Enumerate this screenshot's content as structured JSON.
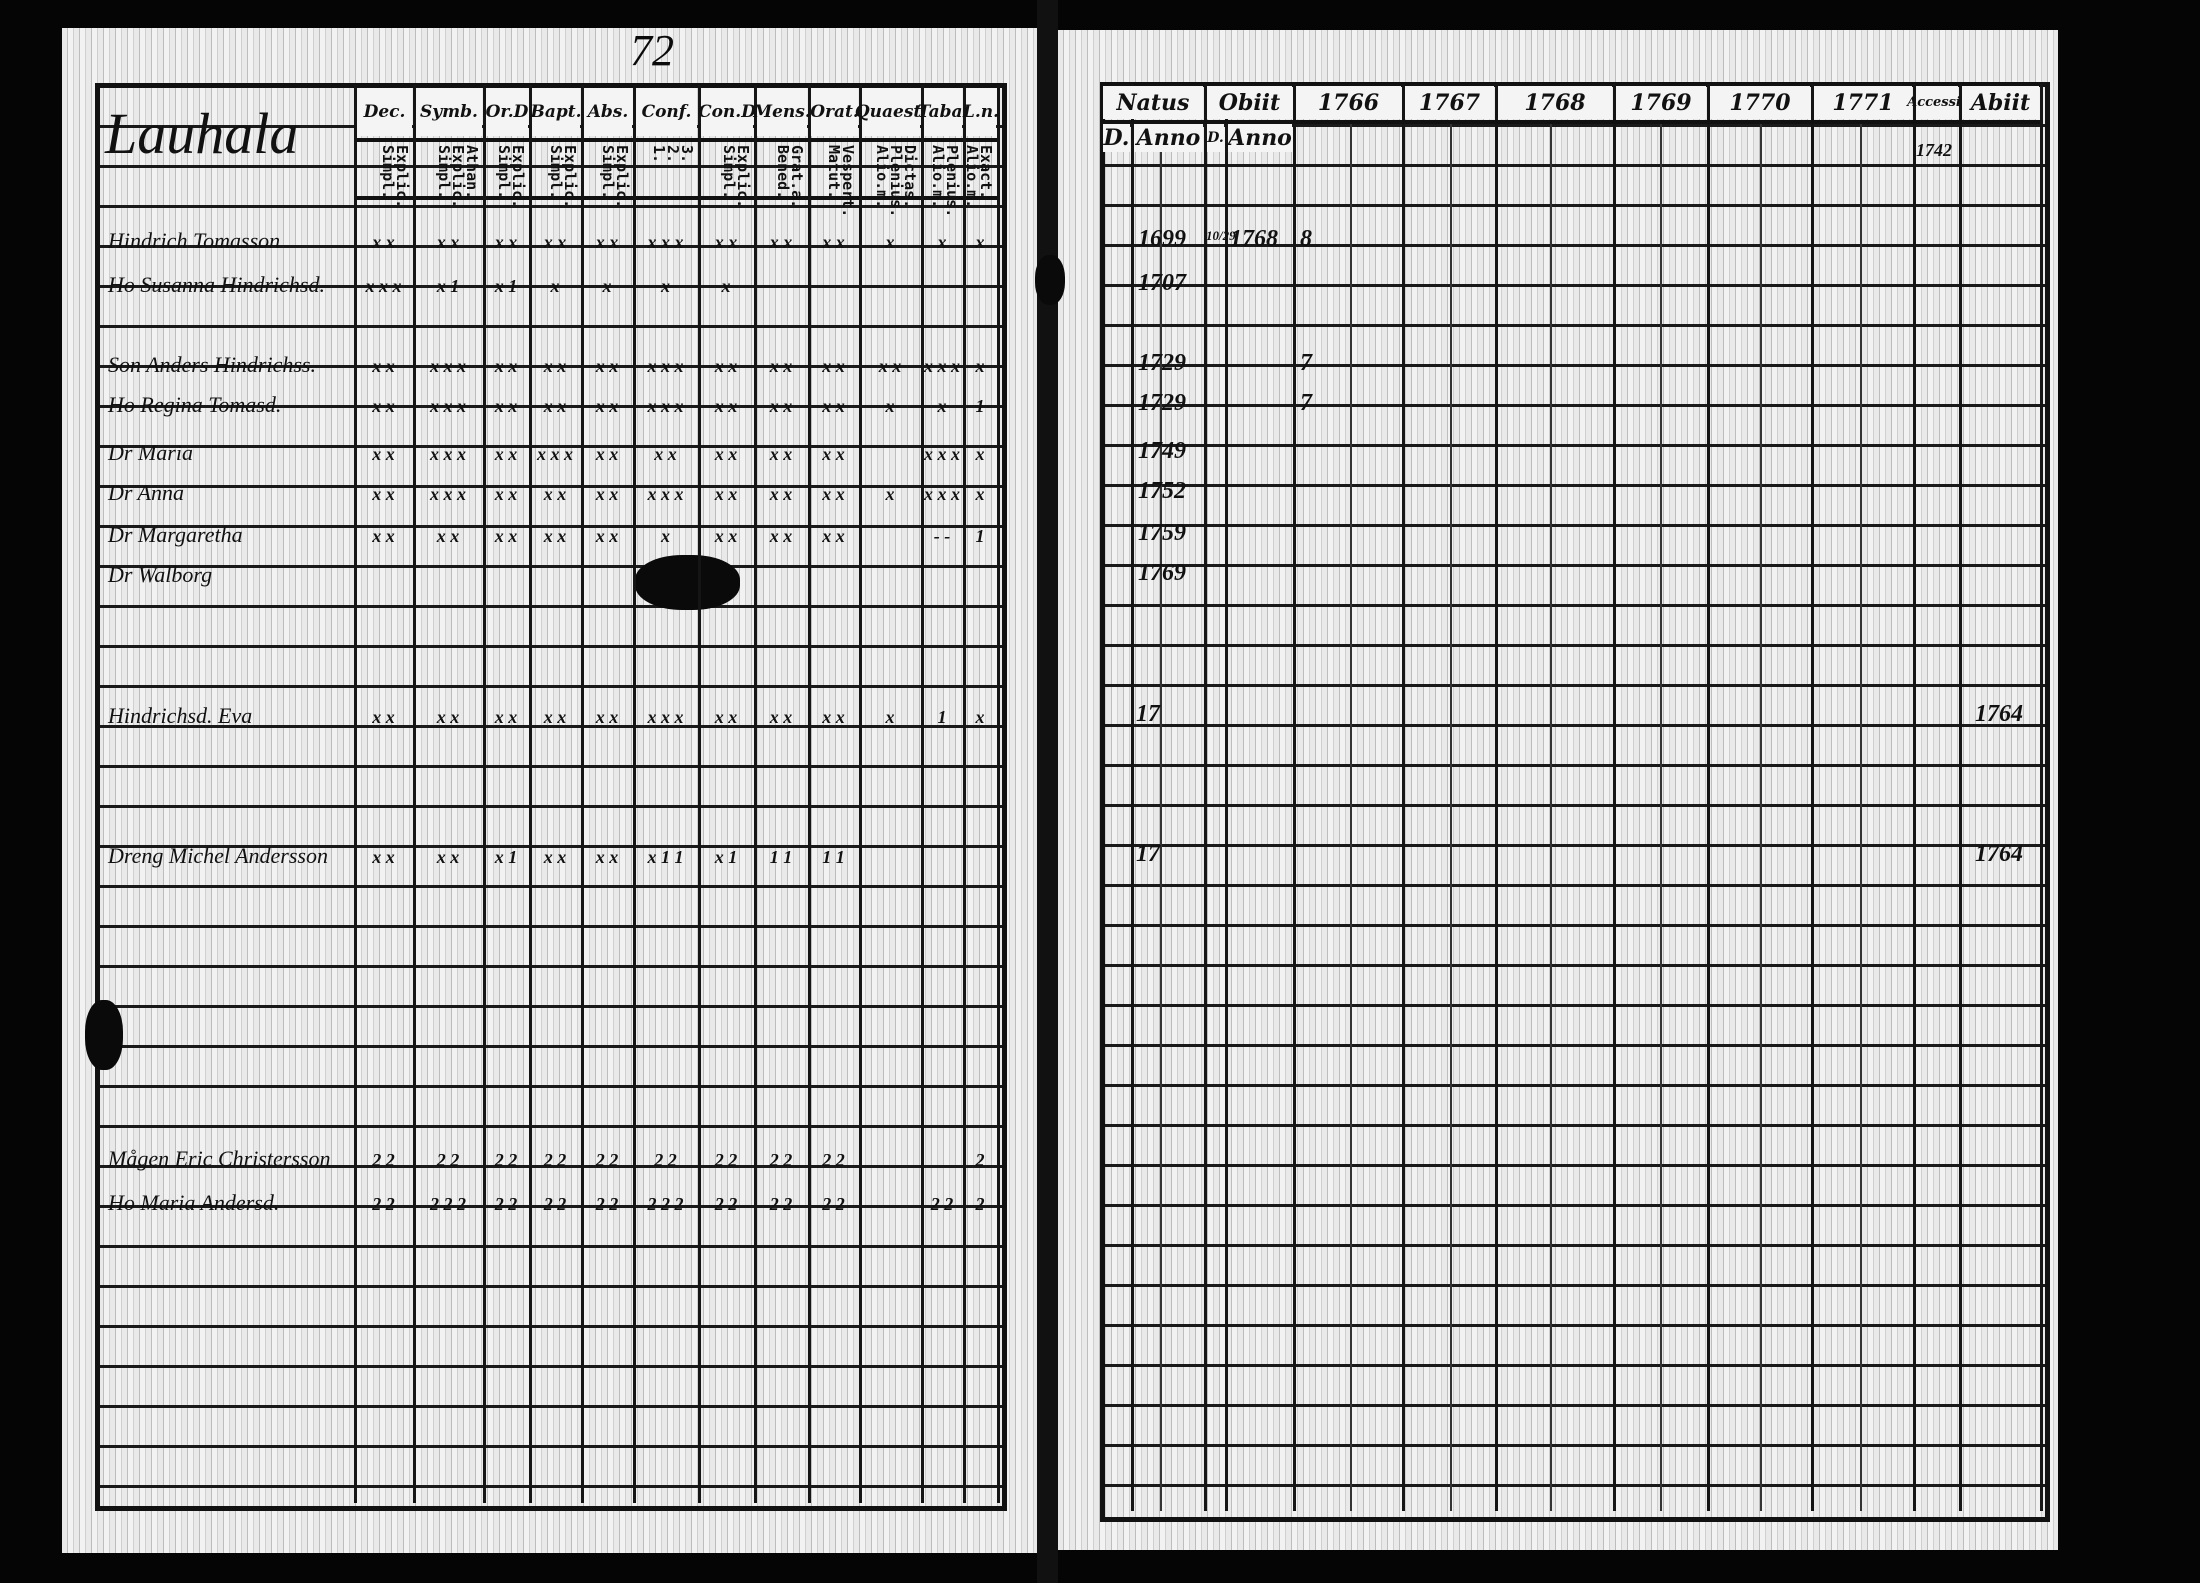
{
  "page_number": "72",
  "left_page": {
    "village": "Lauhala",
    "columns": [
      {
        "head": "Dec.",
        "sub": "Explic.\nSimpl."
      },
      {
        "head": "Symb.",
        "sub": "Athan.\nExplic.\nSimpl."
      },
      {
        "head": "Or.D",
        "sub": "Explic.\nSimpl."
      },
      {
        "head": "Bapt.",
        "sub": "Explic.\nSimpl."
      },
      {
        "head": "Abs.",
        "sub": "Explic.\nSimpl."
      },
      {
        "head": "Conf.",
        "sub": "3.\n2.\n1."
      },
      {
        "head": "Con.D",
        "sub": "Explic.\nSimpl."
      },
      {
        "head": "Mens.",
        "sub": "Grat.a.\nBened."
      },
      {
        "head": "Orat.",
        "sub": "Vespert.\nMatut."
      },
      {
        "head": "Quaest.",
        "sub": "Dictas.\nPlenius.\nAlio.m."
      },
      {
        "head": "Taba.",
        "sub": "Plenius.\nAlio.m."
      },
      {
        "head": "L.n.",
        "sub": "Exact.\nAlio.m."
      }
    ],
    "rows": [
      {
        "name": "Hindrich Tomasson",
        "marks": [
          "x x",
          "x x",
          "x x",
          "x x",
          "x x",
          "x x x",
          "x x",
          "x x",
          "x x",
          "x",
          "x",
          "x"
        ]
      },
      {
        "name": "Ho Susanna Hindrichsd.",
        "marks": [
          "x x x",
          "x 1",
          "x 1",
          "x",
          "x",
          "x",
          "x",
          "",
          "",
          "",
          "",
          ""
        ]
      },
      {
        "name": "Son Anders Hindrichss.",
        "marks": [
          "x x",
          "x x x",
          "x x",
          "x x",
          "x x",
          "x x x",
          "x x",
          "x x",
          "x x",
          "x x",
          "x x x",
          "x"
        ]
      },
      {
        "name": "Ho Regina Tomasd.",
        "marks": [
          "x x",
          "x x x",
          "x x",
          "x x",
          "x x",
          "x x x",
          "x x",
          "x x",
          "x x",
          "x",
          "x",
          "1"
        ]
      },
      {
        "name": "Dr Maria",
        "marks": [
          "x x",
          "x x x",
          "x x",
          "x x x",
          "x x",
          "x x",
          "x x",
          "x x",
          "x x",
          "",
          "x x x",
          "x"
        ]
      },
      {
        "name": "Dr Anna",
        "marks": [
          "x x",
          "x x x",
          "x x",
          "x x",
          "x x",
          "x x x",
          "x x",
          "x x",
          "x x",
          "x",
          "x x x",
          "x"
        ]
      },
      {
        "name": "Dr Margaretha",
        "marks": [
          "x x",
          "x x",
          "x x",
          "x x",
          "x x",
          "x",
          "x x",
          "x x",
          "x x",
          "",
          "- -",
          "1"
        ]
      },
      {
        "name": "Dr Walborg",
        "marks": [
          "",
          "",
          "",
          "",
          "",
          "",
          "",
          "",
          "",
          "",
          "",
          ""
        ]
      },
      {
        "name": "Hindrichsd. Eva",
        "marks": [
          "x x",
          "x x",
          "x x",
          "x x",
          "x x",
          "x x x",
          "x x",
          "x x",
          "x x",
          "x",
          "1",
          "x"
        ]
      },
      {
        "name": "Dreng Michel Andersson",
        "marks": [
          "x x",
          "x x",
          "x 1",
          "x x",
          "x x",
          "x 1 1",
          "x 1",
          "1 1",
          "1 1",
          "",
          "",
          ""
        ]
      },
      {
        "name": "Mågen Eric Christersson",
        "marks": [
          "2 2",
          "2 2",
          "2 2",
          "2 2",
          "2 2",
          "2 2",
          "2 2",
          "2 2",
          "2 2",
          "",
          "",
          "2"
        ]
      },
      {
        "name": "Ho Maria Andersd.",
        "marks": [
          "2 2",
          "2 2 2",
          "2 2",
          "2 2",
          "2 2",
          "2 2 2",
          "2 2",
          "2 2",
          "2 2",
          "",
          "2 2",
          "2"
        ]
      }
    ]
  },
  "right_page": {
    "headers": {
      "natus": "Natus",
      "obiit": "Obiit",
      "natus_d": "D.",
      "natus_anno": "Anno",
      "obiit_d": "D.",
      "obiit_anno": "Anno",
      "years": [
        "1766",
        "1767",
        "1768",
        "1769",
        "1770",
        "1771"
      ],
      "accessit": "Accessit",
      "accessit_year": "1742",
      "abiit": "Abiit"
    },
    "rows": [
      {
        "d": "",
        "anno": "1699",
        "obit_d": "10/29",
        "obit_anno": "1768",
        "note": "8"
      },
      {
        "d": "",
        "anno": "1707",
        "obit_d": "",
        "obit_anno": "",
        "note": ""
      },
      {
        "d": "",
        "anno": "1729",
        "obit_d": "",
        "obit_anno": "",
        "note": "7"
      },
      {
        "d": "",
        "anno": "1729",
        "obit_d": "",
        "obit_anno": "",
        "note": "7"
      },
      {
        "d": "",
        "anno": "1749",
        "obit_d": "",
        "obit_anno": "",
        "note": ""
      },
      {
        "d": "",
        "anno": "1752",
        "obit_d": "",
        "obit_anno": "",
        "note": ""
      },
      {
        "d": "",
        "anno": "1759",
        "obit_d": "",
        "obit_anno": "",
        "note": ""
      },
      {
        "d": "",
        "anno": "1769",
        "obit_d": "",
        "obit_anno": "",
        "note": ""
      },
      {
        "d": "17",
        "anno": "",
        "obit_d": "",
        "obit_anno": "",
        "note": "",
        "abiit": "1764"
      },
      {
        "d": "17",
        "anno": "",
        "obit_d": "",
        "obit_anno": "",
        "note": "",
        "abiit": "1764"
      }
    ]
  }
}
